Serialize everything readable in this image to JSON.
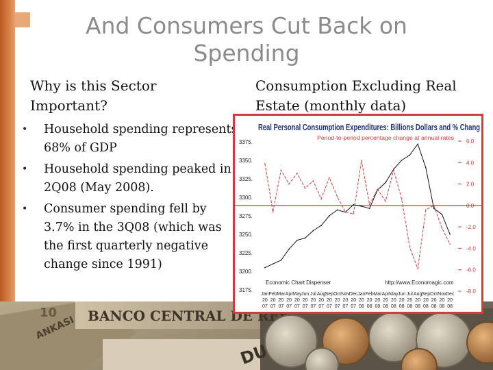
{
  "slide": {
    "title": "And Consumers Cut Back on Spending",
    "left_heading": "Why is this Sector Important?",
    "right_heading": "Consumption Excluding Real Estate (monthly data)",
    "bullets": [
      "Household spending represents 68% of GDP",
      "Household spending peaked in 2Q08 (May 2008).",
      "Consumer spending fell by 3.7% in the 3Q08 (which was the first quarterly negative change since 1991)"
    ],
    "photo_text": [
      "BANCO CENTRAL DE RES",
      "ANKASI",
      "DU",
      "10"
    ],
    "colors": {
      "accent_orange": "#c8642a",
      "chart_red": "#d23c3c",
      "title_gray": "#8b8b8b"
    }
  },
  "chart_data": {
    "type": "line",
    "title": "Real Personal Consumption Expenditures: Billions Dollars and % Chang",
    "subtitle": "Period-to-period percentage change at annual rates",
    "credit_left": "Economic Chart Dispenser",
    "credit_right": "http://www.Economagic.com",
    "x": [
      "Jan 2007",
      "Feb 2007",
      "Mar 2007",
      "Apr 2007",
      "May 2007",
      "Jun 2007",
      "Jul 2007",
      "Aug 2007",
      "Sep 2007",
      "Oct 2007",
      "Nov 2007",
      "Dec 2007",
      "Jan 2008",
      "Feb 2008",
      "Mar 2008",
      "Apr 2008",
      "May 2008",
      "Jun 2008",
      "Jul 2008",
      "Aug 2008",
      "Sep 2008",
      "Oct 2008",
      "Nov 2008",
      "Dec 2008"
    ],
    "x_ticks_top": [
      "Jan",
      "Feb",
      "Mar",
      "Apr",
      "May",
      "Jun",
      "Jul",
      "Aug",
      "Sep",
      "Oct",
      "Nov",
      "Dec",
      "Jan",
      "Feb",
      "Mar",
      "Apr",
      "May",
      "Jun",
      "Jul",
      "Aug",
      "Sep",
      "Oct",
      "Nov",
      "Dec"
    ],
    "x_ticks_mid": [
      "20",
      "20",
      "20",
      "20",
      "20",
      "20",
      "20",
      "20",
      "20",
      "20",
      "20",
      "20",
      "20",
      "20",
      "20",
      "20",
      "20",
      "20",
      "20",
      "20",
      "20",
      "20",
      "20",
      "20"
    ],
    "x_ticks_bottom": [
      "07",
      "07",
      "07",
      "07",
      "07",
      "07",
      "07",
      "07",
      "07",
      "07",
      "07",
      "07",
      "08",
      "08",
      "08",
      "08",
      "08",
      "08",
      "08",
      "08",
      "08",
      "08",
      "08",
      "08"
    ],
    "y_left_ticks": [
      "3375.",
      "3350.",
      "3325.",
      "3300.",
      "3275.",
      "3250.",
      "3225.",
      "3200.",
      "3175."
    ],
    "y_left_range": [
      3175,
      3375
    ],
    "y_right_ticks": [
      "6.0",
      "4.0",
      "2.0",
      "0.0",
      "-2.0",
      "-4.0",
      "-6.0",
      "-8.0"
    ],
    "y_right_range": [
      -8,
      6
    ],
    "series": [
      {
        "values": [
          3205,
          3210,
          3215,
          3230,
          3242,
          3245,
          3255,
          3262,
          3275,
          3283,
          3280,
          3290,
          3288,
          3285,
          3310,
          3320,
          3338,
          3350,
          3357,
          3372,
          3340,
          3285,
          3277,
          3250
        ]
      },
      {
        "values": [
          3.9,
          -0.6,
          3.3,
          2.0,
          3.0,
          1.6,
          2.3,
          0.6,
          2.6,
          0.8,
          -0.6,
          -0.8,
          4.2,
          0.1,
          1.5,
          0.4,
          3.3,
          0.6,
          -3.9,
          -5.9,
          -0.4,
          0.0,
          -2.1,
          -3.6
        ]
      }
    ],
    "zero_line_right_axis": 0.0,
    "grid": false,
    "legend": "none"
  }
}
